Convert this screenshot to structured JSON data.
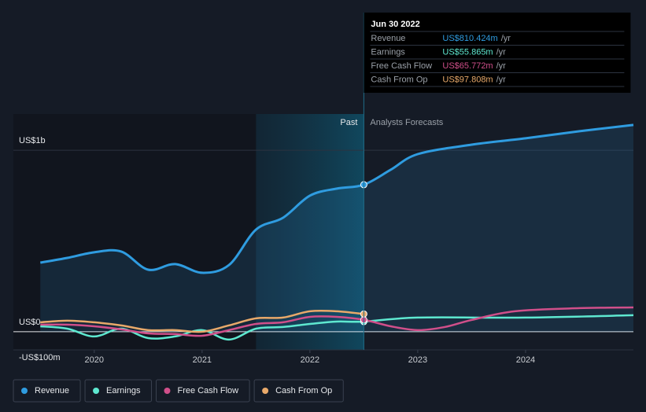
{
  "chart_data": {
    "type": "line",
    "xlim": [
      2019.25,
      2025
    ],
    "xticks": [
      2020,
      2021,
      2022,
      2023,
      2024
    ],
    "ylim": [
      -100,
      1200
    ],
    "yticks": [
      {
        "value": 1000,
        "label": "US$1b"
      },
      {
        "value": 0,
        "label": "US$0"
      },
      {
        "value": -100,
        "label": "-US$100m"
      }
    ],
    "past_range": [
      2021.5,
      2022.5
    ],
    "past_label": "Past",
    "forecast_label": "Analysts Forecasts",
    "series": [
      {
        "name": "Revenue",
        "color": "#2f9ce0",
        "x": [
          2019.5,
          2019.75,
          2020.0,
          2020.25,
          2020.5,
          2020.75,
          2021.0,
          2021.25,
          2021.5,
          2021.75,
          2022.0,
          2022.25,
          2022.5,
          2022.75,
          2023.0,
          2023.5,
          2024.0,
          2024.5,
          2025.0
        ],
        "values": [
          381,
          407,
          438,
          442,
          342,
          373,
          325,
          368,
          563,
          628,
          750,
          789,
          810.424,
          893,
          979,
          1031,
          1066,
          1105,
          1140
        ]
      },
      {
        "name": "Earnings",
        "color": "#5ee8d0",
        "x": [
          2019.5,
          2019.75,
          2020.0,
          2020.25,
          2020.5,
          2020.75,
          2021.0,
          2021.25,
          2021.5,
          2021.75,
          2022.0,
          2022.25,
          2022.5,
          2023.0,
          2024.0,
          2025.0
        ],
        "values": [
          30,
          17,
          -26,
          17,
          -35,
          -26,
          9,
          -43,
          17,
          26,
          43,
          56,
          55.865,
          78,
          78,
          91
        ]
      },
      {
        "name": "Free Cash Flow",
        "color": "#d04f8a",
        "x": [
          2019.5,
          2019.75,
          2020.0,
          2020.25,
          2020.5,
          2020.75,
          2021.0,
          2021.25,
          2021.5,
          2021.75,
          2022.0,
          2022.25,
          2022.5,
          2022.75,
          2023.0,
          2023.25,
          2023.5,
          2023.9,
          2024.5,
          2025.0
        ],
        "values": [
          39,
          39,
          30,
          13,
          -9,
          -13,
          -22,
          9,
          43,
          52,
          82,
          82,
          65.772,
          30,
          9,
          26,
          65,
          113,
          130,
          134
        ]
      },
      {
        "name": "Cash From Op",
        "color": "#e8a96a",
        "x": [
          2019.5,
          2019.75,
          2020.0,
          2020.25,
          2020.5,
          2020.75,
          2021.0,
          2021.25,
          2021.5,
          2021.75,
          2022.0,
          2022.25,
          2022.5
        ],
        "values": [
          52,
          61,
          52,
          35,
          9,
          9,
          0,
          35,
          74,
          78,
          113,
          113,
          97.808
        ]
      }
    ],
    "tooltip": {
      "date": "Jun 30 2022",
      "rows": [
        {
          "label": "Revenue",
          "value": "US$810.424m",
          "unit": "/yr"
        },
        {
          "label": "Earnings",
          "value": "US$55.865m",
          "unit": "/yr"
        },
        {
          "label": "Free Cash Flow",
          "value": "US$65.772m",
          "unit": "/yr"
        },
        {
          "label": "Cash From Op",
          "value": "US$97.808m",
          "unit": "/yr"
        }
      ]
    }
  }
}
